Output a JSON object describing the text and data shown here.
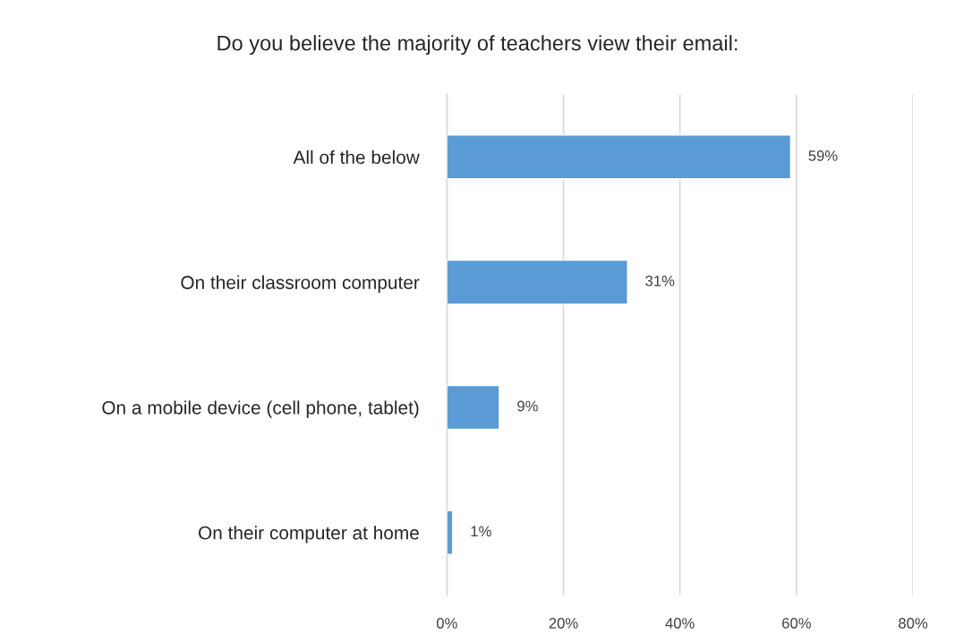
{
  "chart_data": {
    "type": "bar",
    "orientation": "horizontal",
    "title": "Do you believe the majority of teachers view their email:",
    "categories": [
      "All of the below",
      "On their classroom computer",
      "On a mobile device (cell phone, tablet)",
      "On their computer at home"
    ],
    "values": [
      59,
      31,
      9,
      1
    ],
    "color": "#5b9bd5",
    "value_labels": [
      "59%",
      "31%",
      "9%",
      "1%"
    ],
    "xlim": [
      0,
      80
    ],
    "xticks": [
      {
        "value": 0,
        "label": "0%"
      },
      {
        "value": 20,
        "label": "20%"
      },
      {
        "value": 40,
        "label": "40%"
      },
      {
        "value": 60,
        "label": "60%"
      },
      {
        "value": 80,
        "label": "80%"
      }
    ],
    "grid": "x",
    "legend": false
  }
}
